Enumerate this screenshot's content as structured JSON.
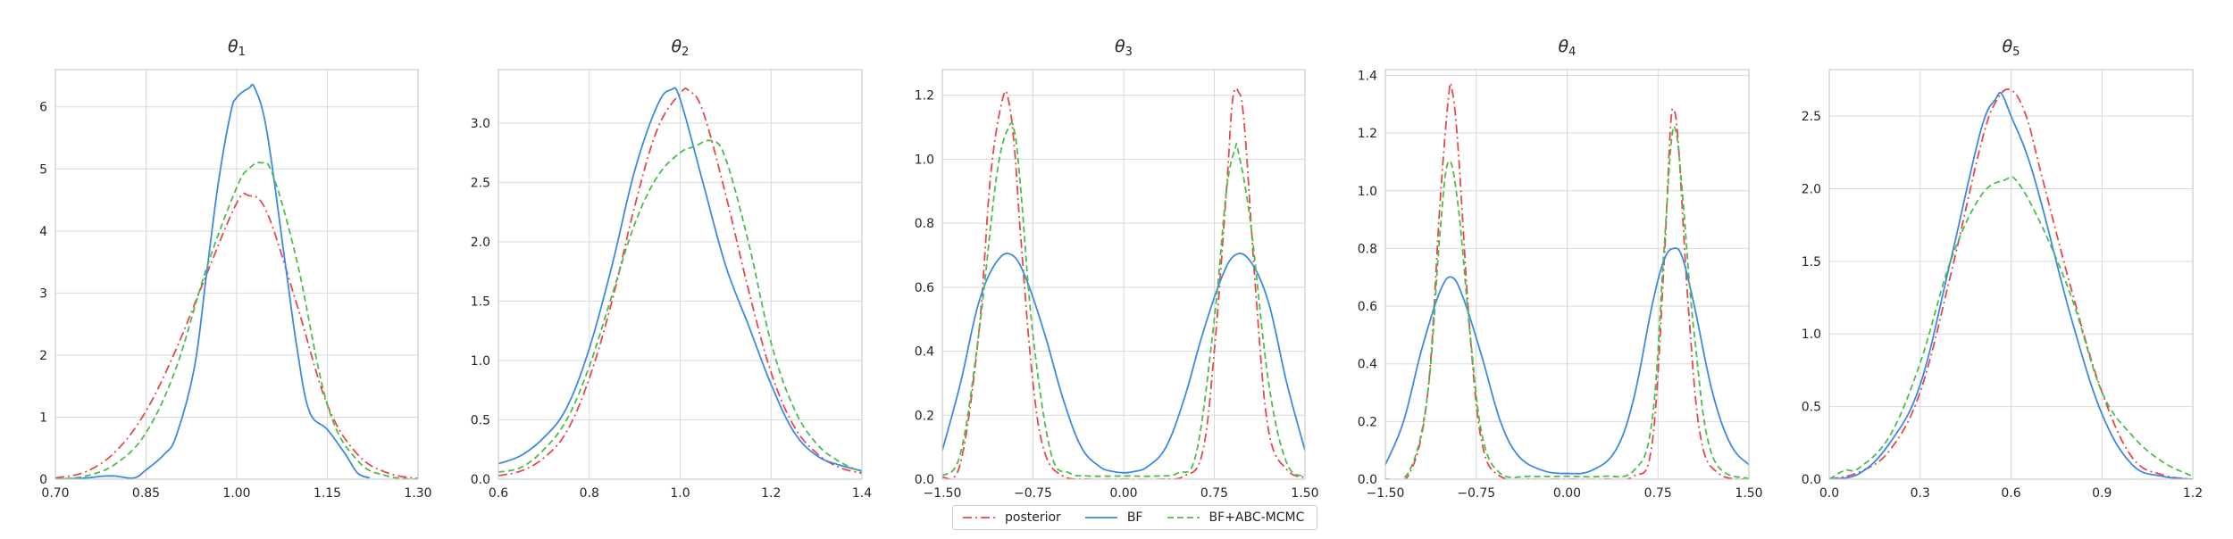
{
  "colors": {
    "posterior": "#e8474b",
    "bf": "#3a8ae6",
    "bf_abc": "#4cbd4a",
    "grid": "#d9d9d9",
    "frame": "#cccccc"
  },
  "legend": {
    "entries": [
      {
        "label": "posterior",
        "series": "posterior",
        "dash": "dashdot"
      },
      {
        "label": "BF",
        "series": "bf",
        "dash": "solid"
      },
      {
        "label": "BF+ABC-MCMC",
        "series": "bf_abc",
        "dash": "dashed"
      }
    ]
  },
  "chart_data": [
    {
      "type": "line",
      "title": "θ",
      "title_sub": "1",
      "xlim": [
        0.7,
        1.3
      ],
      "ylim": [
        0,
        6.6
      ],
      "xticks": [
        0.7,
        0.85,
        1.0,
        1.15,
        1.3
      ],
      "xtick_labels": [
        "0.70",
        "0.85",
        "1.00",
        "1.15",
        "1.30"
      ],
      "yticks": [
        0,
        1,
        2,
        3,
        4,
        5,
        6
      ],
      "ytick_labels": [
        "0",
        "1",
        "2",
        "3",
        "4",
        "5",
        "6"
      ],
      "grid": true,
      "legend": "bottom-center",
      "series": [
        {
          "key": "posterior",
          "name": "posterior",
          "x": [
            0.7,
            0.75,
            0.8,
            0.85,
            0.9,
            0.95,
            1.0,
            1.02,
            1.05,
            1.1,
            1.15,
            1.2,
            1.25,
            1.3
          ],
          "y": [
            0.02,
            0.12,
            0.45,
            1.1,
            2.1,
            3.3,
            4.45,
            4.57,
            4.3,
            2.8,
            1.2,
            0.4,
            0.1,
            0.01
          ]
        },
        {
          "key": "bf",
          "name": "BF",
          "x": [
            0.7,
            0.75,
            0.78,
            0.8,
            0.83,
            0.85,
            0.88,
            0.9,
            0.93,
            0.95,
            0.97,
            0.99,
            1.0,
            1.02,
            1.03,
            1.05,
            1.08,
            1.1,
            1.12,
            1.15,
            1.18,
            1.2,
            1.22
          ],
          "y": [
            0,
            0.02,
            0.05,
            0.05,
            0.02,
            0.15,
            0.4,
            0.7,
            1.8,
            3.3,
            4.8,
            5.9,
            6.15,
            6.3,
            6.3,
            5.6,
            3.5,
            2.1,
            1.1,
            0.8,
            0.4,
            0.1,
            0.02
          ]
        },
        {
          "key": "bf_abc",
          "name": "BF+ABC-MCMC",
          "x": [
            0.7,
            0.75,
            0.8,
            0.85,
            0.9,
            0.95,
            1.0,
            1.02,
            1.04,
            1.06,
            1.1,
            1.15,
            1.2,
            1.25,
            1.3
          ],
          "y": [
            0,
            0.05,
            0.25,
            0.75,
            1.8,
            3.4,
            4.7,
            5.0,
            5.1,
            4.9,
            3.5,
            1.2,
            0.3,
            0.05,
            0
          ]
        }
      ]
    },
    {
      "type": "line",
      "title": "θ",
      "title_sub": "2",
      "xlim": [
        0.6,
        1.4
      ],
      "ylim": [
        0,
        3.45
      ],
      "xticks": [
        0.6,
        0.8,
        1.0,
        1.2,
        1.4
      ],
      "xtick_labels": [
        "0.6",
        "0.8",
        "1.0",
        "1.2",
        "1.4"
      ],
      "yticks": [
        0,
        0.5,
        1.0,
        1.5,
        2.0,
        2.5,
        3.0
      ],
      "ytick_labels": [
        "0.0",
        "0.5",
        "1.0",
        "1.5",
        "2.0",
        "2.5",
        "3.0"
      ],
      "grid": true,
      "legend": "bottom-center",
      "series": [
        {
          "key": "posterior",
          "name": "posterior",
          "x": [
            0.6,
            0.65,
            0.7,
            0.75,
            0.8,
            0.85,
            0.9,
            0.95,
            1.0,
            1.02,
            1.05,
            1.1,
            1.15,
            1.2,
            1.25,
            1.3,
            1.35,
            1.4
          ],
          "y": [
            0.03,
            0.07,
            0.18,
            0.4,
            0.85,
            1.5,
            2.3,
            2.95,
            3.25,
            3.27,
            3.1,
            2.4,
            1.6,
            0.9,
            0.45,
            0.22,
            0.1,
            0.05
          ]
        },
        {
          "key": "bf",
          "name": "BF",
          "x": [
            0.6,
            0.65,
            0.7,
            0.75,
            0.8,
            0.85,
            0.9,
            0.95,
            0.98,
            1.0,
            1.05,
            1.1,
            1.15,
            1.2,
            1.25,
            1.3,
            1.35,
            1.4
          ],
          "y": [
            0.13,
            0.2,
            0.35,
            0.6,
            1.1,
            1.8,
            2.6,
            3.15,
            3.28,
            3.2,
            2.5,
            1.8,
            1.3,
            0.8,
            0.4,
            0.2,
            0.12,
            0.07
          ]
        },
        {
          "key": "bf_abc",
          "name": "BF+ABC-MCMC",
          "x": [
            0.6,
            0.65,
            0.7,
            0.75,
            0.8,
            0.85,
            0.9,
            0.95,
            1.0,
            1.03,
            1.07,
            1.1,
            1.15,
            1.2,
            1.25,
            1.3,
            1.35,
            1.4
          ],
          "y": [
            0.06,
            0.1,
            0.25,
            0.5,
            0.95,
            1.55,
            2.15,
            2.55,
            2.75,
            2.8,
            2.85,
            2.7,
            2.0,
            1.15,
            0.6,
            0.3,
            0.15,
            0.06
          ]
        }
      ]
    },
    {
      "type": "line",
      "title": "θ",
      "title_sub": "3",
      "xlim": [
        -1.5,
        1.5
      ],
      "ylim": [
        0,
        1.28
      ],
      "xticks": [
        -1.5,
        -0.75,
        0.0,
        0.75,
        1.5
      ],
      "xtick_labels": [
        "−1.50",
        "−0.75",
        "0.00",
        "0.75",
        "1.50"
      ],
      "yticks": [
        0,
        0.2,
        0.4,
        0.6,
        0.8,
        1.0,
        1.2
      ],
      "ytick_labels": [
        "0.0",
        "0.2",
        "0.4",
        "0.6",
        "0.8",
        "1.0",
        "1.2"
      ],
      "grid": true,
      "legend": "bottom-center",
      "series": [
        {
          "key": "posterior",
          "name": "posterior",
          "x": [
            -1.5,
            -1.35,
            -1.2,
            -1.1,
            -1.0,
            -0.95,
            -0.9,
            -0.85,
            -0.75,
            -0.65,
            -0.5,
            -0.3,
            0.0,
            0.3,
            0.5,
            0.65,
            0.75,
            0.85,
            0.9,
            0.95,
            1.0,
            1.1,
            1.2,
            1.35,
            1.5
          ],
          "y": [
            0.005,
            0.05,
            0.45,
            0.95,
            1.19,
            1.18,
            1.02,
            0.75,
            0.3,
            0.08,
            0.01,
            0,
            0,
            0,
            0.01,
            0.08,
            0.4,
            0.9,
            1.18,
            1.21,
            1.1,
            0.55,
            0.15,
            0.03,
            0.005
          ]
        },
        {
          "key": "bf",
          "name": "BF",
          "x": [
            -1.5,
            -1.35,
            -1.2,
            -1.05,
            -0.92,
            -0.8,
            -0.65,
            -0.5,
            -0.35,
            -0.2,
            -0.1,
            0.0,
            0.1,
            0.2,
            0.35,
            0.5,
            0.65,
            0.8,
            0.92,
            1.05,
            1.2,
            1.35,
            1.5
          ],
          "y": [
            0.09,
            0.3,
            0.55,
            0.68,
            0.7,
            0.62,
            0.45,
            0.25,
            0.1,
            0.04,
            0.025,
            0.02,
            0.025,
            0.04,
            0.1,
            0.25,
            0.45,
            0.62,
            0.7,
            0.68,
            0.55,
            0.3,
            0.09
          ]
        },
        {
          "key": "bf_abc",
          "name": "BF+ABC-MCMC",
          "x": [
            -1.5,
            -1.35,
            -1.2,
            -1.05,
            -0.95,
            -0.9,
            -0.85,
            -0.75,
            -0.6,
            -0.45,
            -0.3,
            0.0,
            0.3,
            0.45,
            0.6,
            0.75,
            0.85,
            0.92,
            0.95,
            1.05,
            1.2,
            1.35,
            1.5
          ],
          "y": [
            0.01,
            0.08,
            0.45,
            0.95,
            1.1,
            1.08,
            0.9,
            0.45,
            0.08,
            0.02,
            0.01,
            0.01,
            0.01,
            0.02,
            0.08,
            0.5,
            0.9,
            1.03,
            1.02,
            0.8,
            0.3,
            0.05,
            0.01
          ]
        }
      ]
    },
    {
      "type": "line",
      "title": "θ",
      "title_sub": "4",
      "xlim": [
        -1.5,
        1.5
      ],
      "ylim": [
        0,
        1.42
      ],
      "xticks": [
        -1.5,
        -0.75,
        0.0,
        0.75,
        1.5
      ],
      "xtick_labels": [
        "−1.50",
        "−0.75",
        "0.00",
        "0.75",
        "1.50"
      ],
      "yticks": [
        0,
        0.2,
        0.4,
        0.6,
        0.8,
        1.0,
        1.2,
        1.4
      ],
      "ytick_labels": [
        "0.0",
        "0.2",
        "0.4",
        "0.6",
        "0.8",
        "1.0",
        "1.2",
        "1.4"
      ],
      "grid": true,
      "legend": "bottom-center",
      "series": [
        {
          "key": "posterior",
          "name": "posterior",
          "x": [
            -1.5,
            -1.3,
            -1.15,
            -1.05,
            -0.98,
            -0.95,
            -0.9,
            -0.8,
            -0.7,
            -0.55,
            -0.3,
            0.0,
            0.3,
            0.55,
            0.7,
            0.8,
            0.85,
            0.88,
            0.92,
            1.0,
            1.1,
            1.25,
            1.5
          ],
          "y": [
            0,
            0.02,
            0.3,
            0.95,
            1.32,
            1.35,
            1.15,
            0.5,
            0.12,
            0.01,
            0,
            0,
            0,
            0.01,
            0.12,
            0.75,
            1.2,
            1.28,
            1.15,
            0.6,
            0.15,
            0.02,
            0
          ]
        },
        {
          "key": "bf",
          "name": "BF",
          "x": [
            -1.5,
            -1.35,
            -1.2,
            -1.05,
            -0.95,
            -0.85,
            -0.7,
            -0.55,
            -0.4,
            -0.2,
            0.0,
            0.2,
            0.4,
            0.55,
            0.7,
            0.8,
            0.88,
            0.95,
            1.05,
            1.2,
            1.35,
            1.5
          ],
          "y": [
            0.05,
            0.2,
            0.45,
            0.65,
            0.7,
            0.62,
            0.42,
            0.2,
            0.08,
            0.03,
            0.02,
            0.03,
            0.1,
            0.28,
            0.6,
            0.76,
            0.8,
            0.77,
            0.6,
            0.3,
            0.12,
            0.05
          ]
        },
        {
          "key": "bf_abc",
          "name": "BF+ABC-MCMC",
          "x": [
            -1.5,
            -1.3,
            -1.15,
            -1.05,
            -0.98,
            -0.9,
            -0.8,
            -0.7,
            -0.55,
            -0.3,
            0.0,
            0.3,
            0.55,
            0.7,
            0.8,
            0.86,
            0.9,
            0.95,
            1.05,
            1.2,
            1.5
          ],
          "y": [
            0,
            0.03,
            0.3,
            0.85,
            1.1,
            0.95,
            0.5,
            0.15,
            0.02,
            0.01,
            0.01,
            0.01,
            0.03,
            0.2,
            0.8,
            1.17,
            1.2,
            1.0,
            0.5,
            0.08,
            0
          ]
        }
      ]
    },
    {
      "type": "line",
      "title": "θ",
      "title_sub": "5",
      "xlim": [
        0.0,
        1.2
      ],
      "ylim": [
        0,
        2.82
      ],
      "xticks": [
        0.0,
        0.3,
        0.6,
        0.9,
        1.2
      ],
      "xtick_labels": [
        "0.0",
        "0.3",
        "0.6",
        "0.9",
        "1.2"
      ],
      "yticks": [
        0,
        0.5,
        1.0,
        1.5,
        2.0,
        2.5
      ],
      "ytick_labels": [
        "0.0",
        "0.5",
        "1.0",
        "1.5",
        "2.0",
        "2.5"
      ],
      "grid": true,
      "legend": "bottom-center",
      "series": [
        {
          "key": "posterior",
          "name": "posterior",
          "x": [
            0.0,
            0.1,
            0.2,
            0.3,
            0.4,
            0.5,
            0.55,
            0.6,
            0.65,
            0.7,
            0.8,
            0.9,
            1.0,
            1.1,
            1.2
          ],
          "y": [
            0.0,
            0.05,
            0.2,
            0.6,
            1.4,
            2.3,
            2.6,
            2.68,
            2.5,
            2.1,
            1.3,
            0.6,
            0.15,
            0.03,
            0.0
          ]
        },
        {
          "key": "bf",
          "name": "BF",
          "x": [
            0.0,
            0.1,
            0.2,
            0.3,
            0.4,
            0.5,
            0.55,
            0.57,
            0.6,
            0.65,
            0.7,
            0.8,
            0.9,
            1.0,
            1.1,
            1.2
          ],
          "y": [
            0.0,
            0.04,
            0.25,
            0.65,
            1.5,
            2.4,
            2.62,
            2.65,
            2.5,
            2.25,
            1.9,
            1.1,
            0.45,
            0.1,
            0.02,
            0.0
          ]
        },
        {
          "key": "bf_abc",
          "name": "BF+ABC-MCMC",
          "x": [
            0.0,
            0.05,
            0.1,
            0.2,
            0.3,
            0.4,
            0.5,
            0.58,
            0.62,
            0.7,
            0.8,
            0.9,
            1.0,
            1.1,
            1.2
          ],
          "y": [
            0.0,
            0.06,
            0.08,
            0.3,
            0.8,
            1.5,
            1.95,
            2.06,
            2.05,
            1.75,
            1.25,
            0.6,
            0.3,
            0.12,
            0.02
          ]
        }
      ]
    }
  ]
}
